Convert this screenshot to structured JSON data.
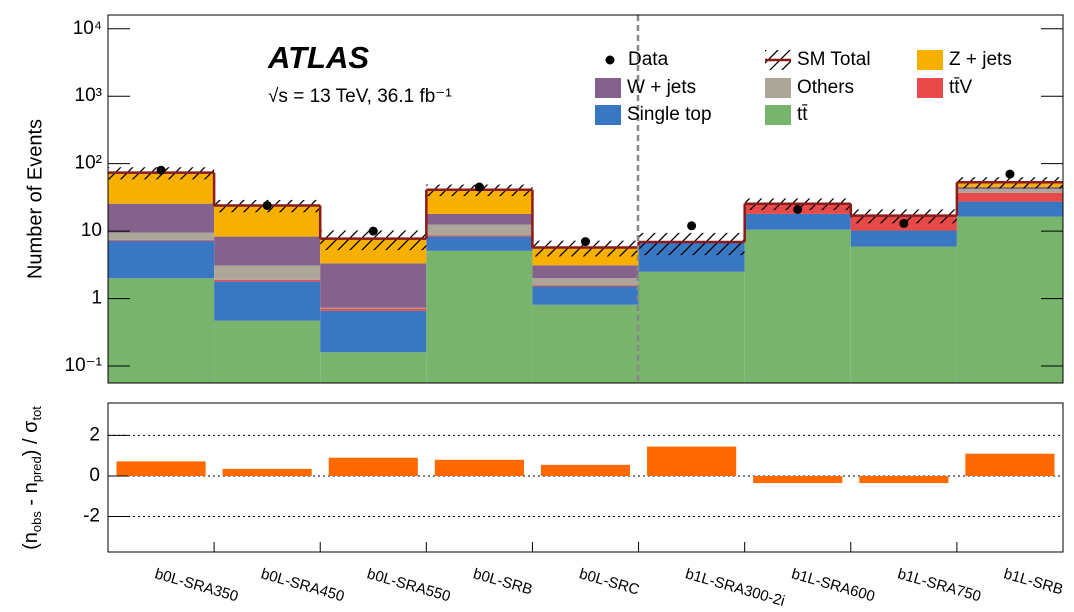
{
  "chart_data": [
    {
      "type": "stacked-bar",
      "log_scale": true,
      "title": "ATLAS",
      "subtitle": "√s = 13 TeV, 36.1 fb⁻¹",
      "ylabel": "Number of Events",
      "categories": [
        "b0L-SRA350",
        "b0L-SRA450",
        "b0L-SRA550",
        "b0L-SRB",
        "b0L-SRC",
        "b1L-SRA300-2i",
        "b1L-SRA600",
        "b1L-SRA750",
        "b1L-SRB"
      ],
      "ylim": [
        0.056,
        16000
      ],
      "yticks": [
        {
          "value": 0.1,
          "label": "10⁻¹"
        },
        1,
        10,
        {
          "value": 100,
          "label": "10²"
        },
        {
          "value": 1000,
          "label": "10³"
        },
        {
          "value": 10000,
          "label": "10⁴"
        }
      ],
      "series": [
        {
          "name": "tt̄",
          "color": "#78b46c",
          "values": [
            2.0,
            0.47,
            0.16,
            5.1,
            0.81,
            2.5,
            10.5,
            5.9,
            16.4
          ]
        },
        {
          "name": "Single top",
          "color": "#3a77c2",
          "values": [
            5.2,
            1.33,
            0.5,
            3.2,
            0.7,
            4.2,
            7.5,
            4.3,
            11
          ]
        },
        {
          "name": "tt̄V",
          "color": "#e84a4a",
          "values": [
            0.2,
            0.1,
            0.05,
            0.3,
            0.05,
            0.2,
            7.5,
            6.8,
            9.6
          ]
        },
        {
          "name": "Others",
          "color": "#aba697",
          "values": [
            2.1,
            1.2,
            0.02,
            3.9,
            0.45,
            0,
            0,
            0,
            5
          ]
        },
        {
          "name": "W + jets",
          "color": "#84628c",
          "values": [
            16,
            5.2,
            2.6,
            5.5,
            1.1,
            0,
            0,
            0,
            3
          ]
        },
        {
          "name": "Z + jets",
          "color": "#f8b000",
          "values": [
            48,
            15.7,
            4.4,
            23,
            2.6,
            0,
            0,
            0,
            8
          ]
        }
      ],
      "uncertainty": {
        "name": "SM Total",
        "color": "#8b1a1a",
        "errors": [
          15,
          5,
          2.5,
          8,
          1.5,
          2.5,
          5,
          4,
          10
        ]
      },
      "data": {
        "name": "Data",
        "color": "#000000",
        "values": [
          80,
          24,
          10,
          45,
          7,
          12,
          21,
          13,
          70
        ]
      }
    },
    {
      "type": "bar",
      "ylabel": [
        "(n",
        "obs",
        " - n",
        "pred",
        ") / σ",
        "tot"
      ],
      "color": "#ff6a00",
      "values": [
        0.72,
        0.35,
        0.9,
        0.8,
        0.55,
        1.45,
        -0.35,
        -0.35,
        1.1
      ],
      "ylim": [
        -3.75,
        3.6
      ],
      "yticks": [
        -2,
        0,
        2
      ],
      "grid": true
    }
  ]
}
